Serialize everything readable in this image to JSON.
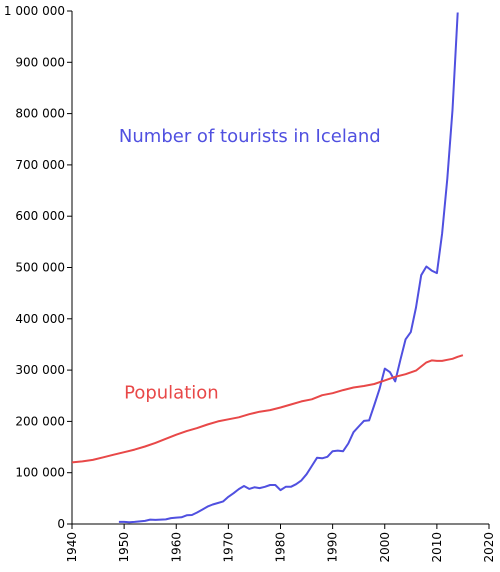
{
  "chart_data": {
    "type": "line",
    "title": "",
    "xlabel": "",
    "ylabel": "",
    "xlim": [
      1940,
      2020
    ],
    "ylim": [
      0,
      1000000
    ],
    "grid": false,
    "legend": "none",
    "x_ticks": [
      {
        "value": 1940,
        "label": "1940"
      },
      {
        "value": 1950,
        "label": "1950"
      },
      {
        "value": 1960,
        "label": "1960"
      },
      {
        "value": 1970,
        "label": "1970"
      },
      {
        "value": 1980,
        "label": "1980"
      },
      {
        "value": 1990,
        "label": "1990"
      },
      {
        "value": 2000,
        "label": "2000"
      },
      {
        "value": 2010,
        "label": "2010"
      },
      {
        "value": 2020,
        "label": "2020"
      }
    ],
    "y_ticks": [
      {
        "value": 0,
        "label": "0"
      },
      {
        "value": 100000,
        "label": "100 000"
      },
      {
        "value": 200000,
        "label": "200 000"
      },
      {
        "value": 300000,
        "label": "300 000"
      },
      {
        "value": 400000,
        "label": "400 000"
      },
      {
        "value": 500000,
        "label": "500 000"
      },
      {
        "value": 600000,
        "label": "600 000"
      },
      {
        "value": 700000,
        "label": "700 000"
      },
      {
        "value": 800000,
        "label": "800 000"
      },
      {
        "value": 900000,
        "label": "900 000"
      },
      {
        "value": 1000000,
        "label": "1 000 000"
      }
    ],
    "series": [
      {
        "name": "Number of tourists in Iceland",
        "color": "#5050e0",
        "label_at": [
          1949,
          745000
        ],
        "points": [
          [
            1949,
            4000
          ],
          [
            1950,
            4000
          ],
          [
            1951,
            3500
          ],
          [
            1952,
            4000
          ],
          [
            1953,
            5000
          ],
          [
            1954,
            6000
          ],
          [
            1955,
            8500
          ],
          [
            1956,
            8000
          ],
          [
            1957,
            8500
          ],
          [
            1958,
            9000
          ],
          [
            1959,
            11500
          ],
          [
            1960,
            12500
          ],
          [
            1961,
            13000
          ],
          [
            1962,
            17000
          ],
          [
            1963,
            17500
          ],
          [
            1964,
            22500
          ],
          [
            1965,
            28000
          ],
          [
            1966,
            34000
          ],
          [
            1967,
            38000
          ],
          [
            1968,
            41000
          ],
          [
            1969,
            44000
          ],
          [
            1970,
            53000
          ],
          [
            1971,
            60000
          ],
          [
            1972,
            68000
          ],
          [
            1973,
            74000
          ],
          [
            1974,
            68500
          ],
          [
            1975,
            71500
          ],
          [
            1976,
            70000
          ],
          [
            1977,
            72500
          ],
          [
            1978,
            76000
          ],
          [
            1979,
            76000
          ],
          [
            1980,
            66000
          ],
          [
            1981,
            72500
          ],
          [
            1982,
            72500
          ],
          [
            1983,
            77500
          ],
          [
            1984,
            85000
          ],
          [
            1985,
            97000
          ],
          [
            1986,
            113000
          ],
          [
            1987,
            129000
          ],
          [
            1988,
            128000
          ],
          [
            1989,
            131000
          ],
          [
            1990,
            142000
          ],
          [
            1991,
            143000
          ],
          [
            1992,
            142000
          ],
          [
            1993,
            157000
          ],
          [
            1994,
            179000
          ],
          [
            1995,
            190000
          ],
          [
            1996,
            201000
          ],
          [
            1997,
            202000
          ],
          [
            1998,
            232000
          ],
          [
            1999,
            263000
          ],
          [
            2000,
            303000
          ],
          [
            2001,
            296000
          ],
          [
            2002,
            278000
          ],
          [
            2003,
            320000
          ],
          [
            2004,
            360000
          ],
          [
            2005,
            374000
          ],
          [
            2006,
            422000
          ],
          [
            2007,
            485000
          ],
          [
            2008,
            502000
          ],
          [
            2009,
            494000
          ],
          [
            2010,
            489000
          ],
          [
            2011,
            566000
          ],
          [
            2012,
            673000
          ],
          [
            2013,
            807000
          ],
          [
            2014,
            997000
          ]
        ]
      },
      {
        "name": "Population",
        "color": "#e84848",
        "label_at": [
          1950,
          245000
        ],
        "points": [
          [
            1940,
            120000
          ],
          [
            1942,
            122000
          ],
          [
            1944,
            125000
          ],
          [
            1946,
            130000
          ],
          [
            1948,
            135000
          ],
          [
            1950,
            140000
          ],
          [
            1952,
            145000
          ],
          [
            1954,
            151000
          ],
          [
            1956,
            158000
          ],
          [
            1958,
            166000
          ],
          [
            1960,
            174000
          ],
          [
            1962,
            181000
          ],
          [
            1964,
            187000
          ],
          [
            1966,
            194000
          ],
          [
            1968,
            200000
          ],
          [
            1970,
            204000
          ],
          [
            1972,
            208000
          ],
          [
            1974,
            214000
          ],
          [
            1976,
            219000
          ],
          [
            1978,
            222000
          ],
          [
            1980,
            227000
          ],
          [
            1982,
            233000
          ],
          [
            1984,
            239000
          ],
          [
            1986,
            243000
          ],
          [
            1988,
            251000
          ],
          [
            1990,
            255000
          ],
          [
            1992,
            261000
          ],
          [
            1994,
            266000
          ],
          [
            1996,
            269000
          ],
          [
            1998,
            273000
          ],
          [
            2000,
            280000
          ],
          [
            2002,
            287000
          ],
          [
            2004,
            292000
          ],
          [
            2006,
            299000
          ],
          [
            2007,
            307000
          ],
          [
            2008,
            315000
          ],
          [
            2009,
            319000
          ],
          [
            2010,
            318000
          ],
          [
            2011,
            318000
          ],
          [
            2012,
            320000
          ],
          [
            2013,
            322000
          ],
          [
            2014,
            326000
          ],
          [
            2015,
            329000
          ]
        ]
      }
    ]
  }
}
